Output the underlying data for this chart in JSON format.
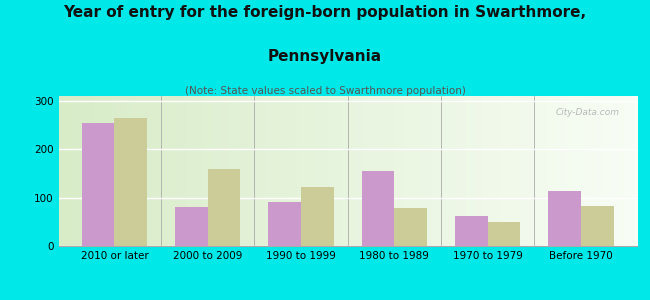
{
  "title_line1": "Year of entry for the foreign-born population in Swarthmore,",
  "title_line2": "Pennsylvania",
  "subtitle": "(Note: State values scaled to Swarthmore population)",
  "categories": [
    "2010 or later",
    "2000 to 2009",
    "1990 to 1999",
    "1980 to 1989",
    "1970 to 1979",
    "Before 1970"
  ],
  "swarthmore_values": [
    255,
    80,
    90,
    155,
    62,
    113
  ],
  "pennsylvania_values": [
    265,
    160,
    122,
    78,
    50,
    82
  ],
  "swarthmore_color": "#cc99cc",
  "pennsylvania_color": "#cccc99",
  "background_color": "#00e8e8",
  "plot_bg_left": "#d8ecc8",
  "plot_bg_right": "#f8fdf5",
  "ylim": [
    0,
    310
  ],
  "yticks": [
    0,
    100,
    200,
    300
  ],
  "bar_width": 0.35,
  "title_fontsize": 11,
  "subtitle_fontsize": 7.5,
  "legend_fontsize": 9,
  "tick_fontsize": 7.5,
  "watermark_text": "City-Data.com"
}
